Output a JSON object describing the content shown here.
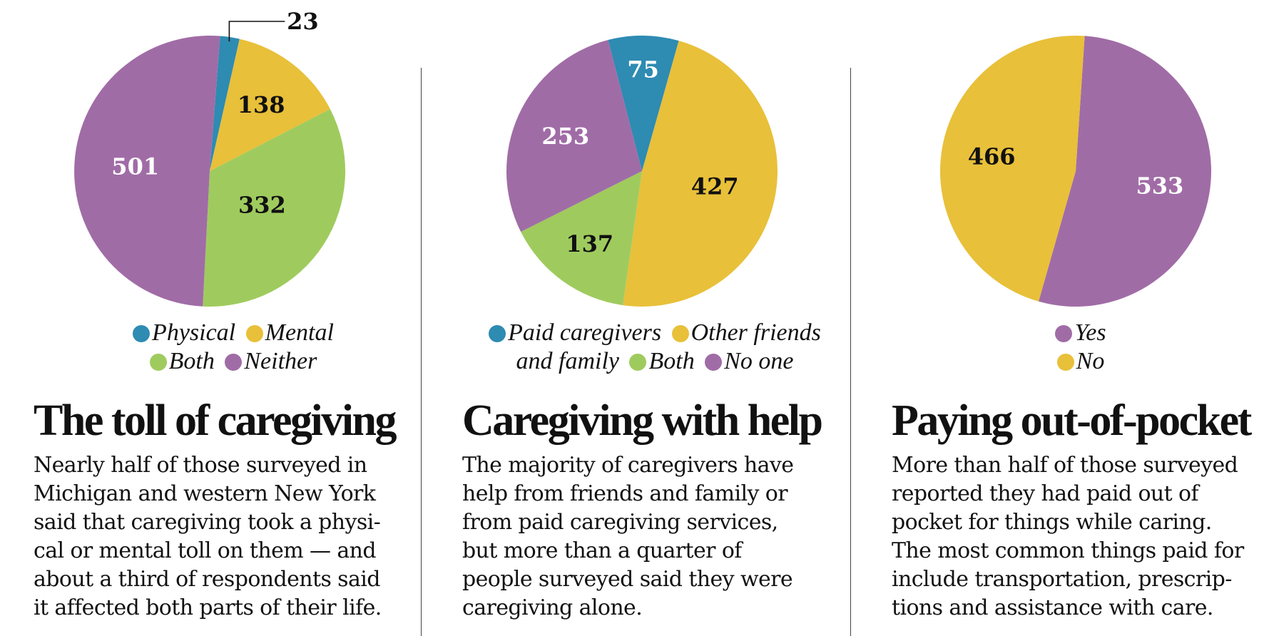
{
  "colors": {
    "physical": "#2e8bb2",
    "mental": "#e8c03a",
    "both": "#9fcb5e",
    "neither": "#a06ca6"
  },
  "chart_data": [
    {
      "type": "pie",
      "title": "The toll of caregiving",
      "description": "Nearly half of those surveyed in\nMichigan and western New York\nsaid that caregiving took a physi-\ncal or mental toll on them — and\nabout a third of respondents said\nit affected both parts of their life.",
      "slices": [
        {
          "label": "Physical",
          "value": 23,
          "color": "#2e8bb2"
        },
        {
          "label": "Mental",
          "value": 138,
          "color": "#e8c03a"
        },
        {
          "label": "Both",
          "value": 332,
          "color": "#9fcb5e"
        },
        {
          "label": "Neither",
          "value": 501,
          "color": "#a06ca6"
        }
      ],
      "legend_lines": [
        [
          "Physical",
          "Mental"
        ],
        [
          "Both",
          "Neither"
        ]
      ]
    },
    {
      "type": "pie",
      "title": "Caregiving with help",
      "description": "The majority of caregivers have\nhelp from friends and family or\nfrom paid caregiving services,\nbut more than a quarter of\npeople surveyed said they were\ncaregiving alone.",
      "slices": [
        {
          "label": "Paid caregivers",
          "value": 75,
          "color": "#2e8bb2"
        },
        {
          "label": "Other friends and family",
          "value": 427,
          "color": "#e8c03a"
        },
        {
          "label": "Both",
          "value": 137,
          "color": "#9fcb5e"
        },
        {
          "label": "No one",
          "value": 253,
          "color": "#a06ca6"
        }
      ],
      "legend_lines": [
        [
          "Paid caregivers",
          "Other friends"
        ],
        [
          "and family",
          "Both",
          "No one"
        ]
      ]
    },
    {
      "type": "pie",
      "title": "Paying out-of-pocket",
      "description": "More than half of those surveyed\nreported they had paid out of\npocket for things while caring.\nThe most common things paid for\ninclude transportation, prescrip-\ntions and assistance with care.",
      "slices": [
        {
          "label": "Yes",
          "value": 533,
          "color": "#a06ca6"
        },
        {
          "label": "No",
          "value": 466,
          "color": "#e8c03a"
        }
      ],
      "legend_lines": [
        [
          "Yes"
        ],
        [
          "No"
        ]
      ]
    }
  ]
}
